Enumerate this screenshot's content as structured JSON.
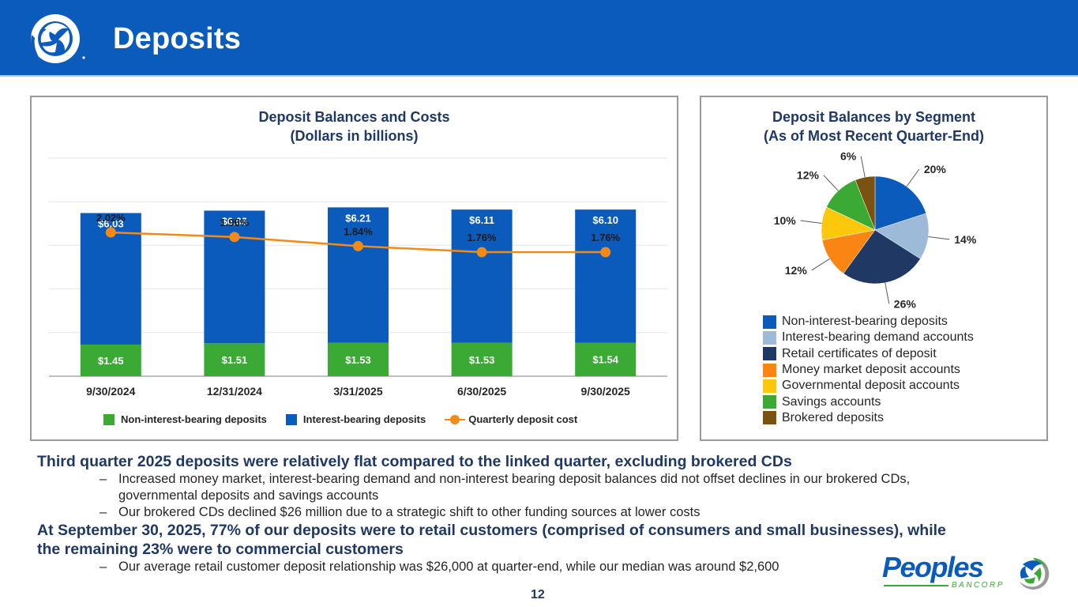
{
  "header": {
    "title": "Deposits",
    "logo_icon": "peoples-swirl-logo-icon"
  },
  "colors": {
    "header_blue": "#0a5bbb",
    "non_interest_green": "#3aaa35",
    "interest_blue": "#0a5bbb",
    "cost_orange": "#f28a17",
    "title_navy": "#1f3864"
  },
  "chart_data": [
    {
      "type": "bar",
      "stacked": true,
      "title": "Deposit Balances and Costs",
      "subtitle": "(Dollars in billions)",
      "xlabel": "",
      "ylabel": "",
      "ylim": [
        0,
        10
      ],
      "grid": true,
      "legend_position": "bottom",
      "categories": [
        "9/30/2024",
        "12/31/2024",
        "3/31/2025",
        "6/30/2025",
        "9/30/2025"
      ],
      "series": [
        {
          "name": "Non-interest-bearing deposits",
          "color": "#3aaa35",
          "values": [
            1.45,
            1.51,
            1.53,
            1.53,
            1.54
          ],
          "labels": [
            "$1.45",
            "$1.51",
            "$1.53",
            "$1.53",
            "$1.54"
          ]
        },
        {
          "name": "Interest-bearing deposits",
          "color": "#0a5bbb",
          "values": [
            6.03,
            6.08,
            6.21,
            6.11,
            6.1
          ],
          "labels": [
            "$6.03",
            "$6.08",
            "$6.21",
            "$6.11",
            "$6.10"
          ]
        },
        {
          "name": "Quarterly deposit cost",
          "type": "line",
          "axis": "secondary",
          "color": "#f28a17",
          "values": [
            2.02,
            1.96,
            1.84,
            1.76,
            1.76
          ],
          "labels": [
            "2.02%",
            "1.96%",
            "1.84%",
            "1.76%",
            "1.76%"
          ]
        }
      ]
    },
    {
      "type": "pie",
      "title": "Deposit Balances by Segment",
      "subtitle": "(As of Most Recent Quarter-End)",
      "legend_position": "bottom",
      "slices": [
        {
          "name": "Non-interest-bearing deposits",
          "value": 20,
          "label": "20%",
          "color": "#0a5bbb"
        },
        {
          "name": "Interest-bearing demand accounts",
          "value": 14,
          "label": "14%",
          "color": "#9dbad8"
        },
        {
          "name": "Retail certificates of deposit",
          "value": 26,
          "label": "26%",
          "color": "#1f3864"
        },
        {
          "name": "Money market deposit accounts",
          "value": 12,
          "label": "12%",
          "color": "#fb8512"
        },
        {
          "name": "Governmental deposit accounts",
          "value": 10,
          "label": "10%",
          "color": "#fdc80c"
        },
        {
          "name": "Savings accounts",
          "value": 12,
          "label": "12%",
          "color": "#3aaa35"
        },
        {
          "name": "Brokered deposits",
          "value": 6,
          "label": "6%",
          "color": "#7a5212"
        }
      ]
    }
  ],
  "left_panel": {
    "title_line1": "Deposit Balances and Costs",
    "title_line2": "(Dollars in billions)",
    "legend": [
      "Non-interest-bearing deposits",
      "Interest-bearing deposits",
      "Quarterly deposit cost"
    ]
  },
  "right_panel": {
    "title_line1": "Deposit Balances by Segment",
    "title_line2": "(As of Most Recent Quarter-End)"
  },
  "bullets": {
    "head1": "Third quarter 2025 deposits were relatively flat compared to the linked quarter, excluding brokered CDs",
    "sub1a_line1": "Increased money market, interest-bearing demand and non-interest bearing deposit balances did not offset declines in our brokered CDs,",
    "sub1a_line2": "governmental deposits and savings accounts",
    "sub1b_pre": "Our brokered CDs declined ",
    "sub1b_amount": "$26 million",
    "sub1b_post": " due to a strategic shift to other funding sources at lower costs",
    "head2_line1": "At September 30, 2025, 77% of our deposits were to retail customers (comprised of consumers and small businesses), while",
    "head2_line2": "the remaining 23% were to commercial customers",
    "sub2a": "Our average retail customer deposit relationship was $26,000 at quarter-end, while our median was around $2,600",
    "dash": "–"
  },
  "footer": {
    "page_number": "12",
    "logo_word": "Peoples",
    "logo_sub": "BANCORP",
    "logo_icon": "peoples-bancorp-logo-icon"
  }
}
